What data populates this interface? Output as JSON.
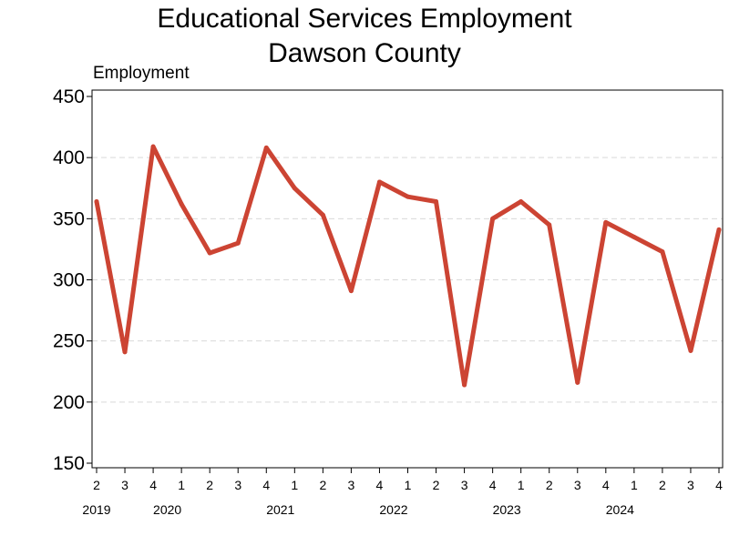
{
  "chart_data": {
    "type": "line",
    "title": [
      "Educational Services Employment",
      "Dawson County"
    ],
    "ylabel": "Employment",
    "xlabel": "",
    "ylim": [
      150,
      450
    ],
    "yticks": [
      150,
      200,
      250,
      300,
      350,
      400,
      450
    ],
    "grid": "horizontal-dashed",
    "x_quarters": [
      "2",
      "3",
      "4",
      "1",
      "2",
      "3",
      "4",
      "1",
      "2",
      "3",
      "4",
      "1",
      "2",
      "3",
      "4",
      "1",
      "2",
      "3",
      "4",
      "1",
      "2",
      "3",
      "4"
    ],
    "x_years": [
      {
        "label": "2019",
        "index": 0
      },
      {
        "label": "2020",
        "index": 3
      },
      {
        "label": "2021",
        "index": 7
      },
      {
        "label": "2022",
        "index": 11
      },
      {
        "label": "2023",
        "index": 15
      },
      {
        "label": "2024",
        "index": 19
      }
    ],
    "series": [
      {
        "color": "#cc4433",
        "values": [
          364,
          241,
          409,
          362,
          322,
          330,
          408,
          375,
          353,
          291,
          380,
          368,
          364,
          214,
          350,
          364,
          345,
          216,
          347,
          335,
          323,
          242,
          341
        ]
      }
    ]
  }
}
